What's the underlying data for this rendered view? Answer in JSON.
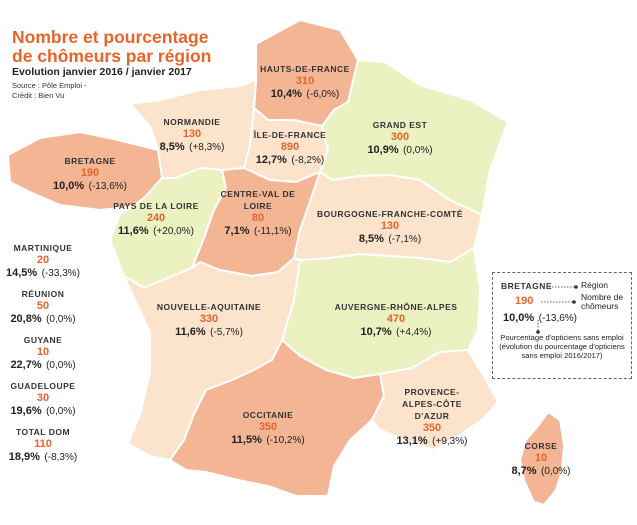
{
  "header": {
    "title": "Nombre et pourcentage de chômeurs par région",
    "subtitle": "Evolution janvier 2016 / janvier 2017",
    "source": "Source : Pôle Emploi -",
    "credit": "Crédit : Bien Vu"
  },
  "colors": {
    "accent": "#e8642a",
    "high": "#f4b595",
    "mid": "#fbe3cc",
    "low": "#ecf1c2",
    "border": "#ffffff",
    "text": "#222222"
  },
  "regions": [
    {
      "name": "HAUTS-DE-FRANCE",
      "count": "310",
      "pct": "10,4%",
      "evo": "(-6,0%)",
      "shade": "high"
    },
    {
      "name": "NORMANDIE",
      "count": "130",
      "pct": "8,5%",
      "evo": "(+8,3%)",
      "shade": "mid"
    },
    {
      "name": "ÎLE-DE-FRANCE",
      "count": "890",
      "pct": "12,7%",
      "evo": "(-8,2%)",
      "shade": "mid"
    },
    {
      "name": "GRAND EST",
      "count": "300",
      "pct": "10,9%",
      "evo": "(0,0%)",
      "shade": "low"
    },
    {
      "name": "BRETAGNE",
      "count": "190",
      "pct": "10,0%",
      "evo": "(-13,6%)",
      "shade": "high"
    },
    {
      "name": "PAYS DE LA LOIRE",
      "count": "240",
      "pct": "11,6%",
      "evo": "(+20,0%)",
      "shade": "low"
    },
    {
      "name": "CENTRE-VAL DE LOIRE",
      "count": "80",
      "pct": "7,1%",
      "evo": "(-11,1%)",
      "shade": "high"
    },
    {
      "name": "BOURGOGNE-FRANCHE-COMTÉ",
      "count": "130",
      "pct": "8,5%",
      "evo": "(-7,1%)",
      "shade": "mid"
    },
    {
      "name": "NOUVELLE-AQUITAINE",
      "count": "330",
      "pct": "11,6%",
      "evo": "(-5,7%)",
      "shade": "mid"
    },
    {
      "name": "AUVERGNE-RHÔNE-ALPES",
      "count": "470",
      "pct": "10,7%",
      "evo": "(+4,4%)",
      "shade": "low"
    },
    {
      "name": "OCCITANIE",
      "count": "350",
      "pct": "11,5%",
      "evo": "(-10,2%)",
      "shade": "high"
    },
    {
      "name": "PROVENCE-ALPES-CÔTE D'AZUR",
      "count": "350",
      "pct": "13,1%",
      "evo": "(+9,3%)",
      "shade": "mid"
    },
    {
      "name": "CORSE",
      "count": "10",
      "pct": "8,7%",
      "evo": "(0,0%)",
      "shade": "high"
    }
  ],
  "dom": [
    {
      "name": "MARTINIQUE",
      "count": "20",
      "pct": "14,5%",
      "evo": "(-33,3%)"
    },
    {
      "name": "RÉUNION",
      "count": "50",
      "pct": "20,8%",
      "evo": "(0,0%)"
    },
    {
      "name": "GUYANE",
      "count": "10",
      "pct": "22,7%",
      "evo": "(0,0%)"
    },
    {
      "name": "GUADELOUPE",
      "count": "30",
      "pct": "19,6%",
      "evo": "(0,0%)"
    },
    {
      "name": "TOTAL DOM",
      "count": "110",
      "pct": "18,9%",
      "evo": "(-8,3%)"
    }
  ],
  "legend": {
    "example_name": "BRETAGNE",
    "example_count": "190",
    "example_pct": "10,0%",
    "example_evo": "(-13,6%)",
    "label_region": "Région",
    "label_count": "Nombre de chômeurs",
    "label_pct": "Pourcentage d'opticiens sans emploi (évolution du pourcentage d'opticiens sans emploi 2016/2017)"
  }
}
